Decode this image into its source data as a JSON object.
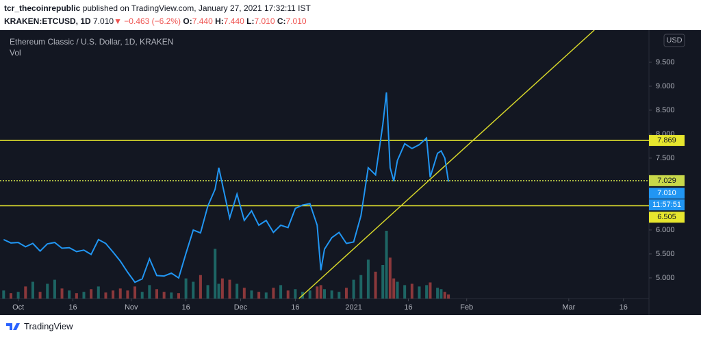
{
  "header": {
    "author": "tcr_thecoinrepublic",
    "published": "published on TradingView.com, January 27, 2021 17:32:11 IST",
    "symbol": "KRAKEN:ETCUSD, 1D",
    "last": "7.010",
    "arrow": "▼",
    "change": "−0.463 (−6.2%)",
    "o_label": "O:",
    "o": "7.440",
    "h_label": "H:",
    "h": "7.440",
    "l_label": "L:",
    "l": "7.010",
    "c_label": "C:",
    "c": "7.010"
  },
  "chart_data": {
    "type": "line",
    "x": [
      "2020-09-27",
      "2020-09-29",
      "2020-10-01",
      "2020-10-03",
      "2020-10-05",
      "2020-10-07",
      "2020-10-09",
      "2020-10-11",
      "2020-10-13",
      "2020-10-15",
      "2020-10-17",
      "2020-10-19",
      "2020-10-21",
      "2020-10-23",
      "2020-10-25",
      "2020-10-27",
      "2020-10-29",
      "2020-10-31",
      "2020-11-02",
      "2020-11-04",
      "2020-11-06",
      "2020-11-08",
      "2020-11-10",
      "2020-11-12",
      "2020-11-14",
      "2020-11-16",
      "2020-11-18",
      "2020-11-20",
      "2020-11-22",
      "2020-11-24",
      "2020-11-25",
      "2020-11-26",
      "2020-11-28",
      "2020-11-30",
      "2020-12-02",
      "2020-12-04",
      "2020-12-06",
      "2020-12-08",
      "2020-12-10",
      "2020-12-12",
      "2020-12-14",
      "2020-12-16",
      "2020-12-18",
      "2020-12-20",
      "2020-12-22",
      "2020-12-23",
      "2020-12-24",
      "2020-12-26",
      "2020-12-28",
      "2020-12-30",
      "2021-01-01",
      "2021-01-03",
      "2021-01-05",
      "2021-01-07",
      "2021-01-09",
      "2021-01-10",
      "2021-01-11",
      "2021-01-12",
      "2021-01-13",
      "2021-01-15",
      "2021-01-17",
      "2021-01-19",
      "2021-01-21",
      "2021-01-22",
      "2021-01-24",
      "2021-01-25",
      "2021-01-26",
      "2021-01-27"
    ],
    "series": [
      {
        "name": "Ethereum Classic / U.S. Dollar, 1D, KRAKEN",
        "color": "#2196f3",
        "values": [
          5.8,
          5.73,
          5.74,
          5.65,
          5.72,
          5.56,
          5.71,
          5.74,
          5.62,
          5.63,
          5.55,
          5.58,
          5.49,
          5.8,
          5.72,
          5.54,
          5.35,
          5.12,
          4.91,
          4.98,
          5.4,
          5.05,
          5.04,
          5.1,
          5.0,
          5.51,
          6.0,
          5.94,
          6.5,
          6.85,
          7.3,
          6.95,
          6.25,
          6.75,
          6.2,
          6.4,
          6.1,
          6.2,
          5.95,
          6.1,
          6.05,
          6.45,
          6.52,
          6.55,
          6.1,
          5.16,
          5.6,
          5.84,
          5.95,
          5.72,
          5.75,
          6.3,
          7.3,
          7.15,
          8.2,
          8.87,
          7.3,
          7.02,
          7.45,
          7.8,
          7.7,
          7.78,
          7.92,
          7.1,
          7.6,
          7.65,
          7.5,
          7.01
        ]
      },
      {
        "name": "Vol",
        "axis": "y2",
        "up_color": "#26a69a",
        "down_color": "#ef5350",
        "values": [
          12,
          8,
          10,
          18,
          25,
          10,
          22,
          28,
          15,
          12,
          8,
          10,
          14,
          18,
          9,
          12,
          15,
          12,
          18,
          10,
          20,
          14,
          10,
          9,
          8,
          30,
          25,
          35,
          20,
          74,
          22,
          30,
          28,
          22,
          16,
          12,
          10,
          9,
          16,
          20,
          12,
          14,
          10,
          12,
          18,
          20,
          14,
          12,
          10,
          16,
          28,
          35,
          58,
          40,
          50,
          101,
          61,
          30,
          25,
          20,
          22,
          18,
          20,
          24,
          16,
          14,
          10,
          6
        ]
      }
    ],
    "xlim": [
      "2020-09-26",
      "2021-03-23"
    ],
    "xticks": [
      {
        "value": "2020-10-01",
        "label": "Oct"
      },
      {
        "value": "2020-10-16",
        "label": "16"
      },
      {
        "value": "2020-11-01",
        "label": "Nov"
      },
      {
        "value": "2020-11-16",
        "label": "16"
      },
      {
        "value": "2020-12-01",
        "label": "Dec"
      },
      {
        "value": "2020-12-16",
        "label": "16"
      },
      {
        "value": "2021-01-01",
        "label": "2021"
      },
      {
        "value": "2021-01-16",
        "label": "16"
      },
      {
        "value": "2021-02-01",
        "label": "Feb"
      },
      {
        "value": "2021-03-01",
        "label": "Mar"
      },
      {
        "value": "2021-03-16",
        "label": "16"
      }
    ],
    "ylim": [
      4.57,
      10.17
    ],
    "yticks": [
      {
        "value": 5,
        "label": "5.000"
      },
      {
        "value": 5.5,
        "label": "5.500"
      },
      {
        "value": 6,
        "label": "6.000"
      },
      {
        "value": 6.5,
        "label": "6.500"
      },
      {
        "value": 7,
        "label": "7.000"
      },
      {
        "value": 7.5,
        "label": "7.500"
      },
      {
        "value": 8,
        "label": "8.000"
      },
      {
        "value": 8.5,
        "label": "8.500"
      },
      {
        "value": 9,
        "label": "9.000"
      },
      {
        "value": 9.5,
        "label": "9.500"
      }
    ],
    "y2lim": [
      0,
      400
    ],
    "currency": "USD",
    "grid": false,
    "hlines": [
      {
        "value": 7.869,
        "color": "#e6e62e"
      },
      {
        "value": 7.029,
        "color": "#c8d84a",
        "dashed": true
      },
      {
        "value": 6.505,
        "color": "#e6e62e"
      }
    ],
    "trendline": {
      "start": [
        "2020-12-17",
        4.57
      ],
      "end": [
        "2021-03-08",
        10.17
      ],
      "color": "#d6d62a"
    },
    "last_price": {
      "value": 7.01,
      "label": "7.010"
    },
    "countdown": "11:57:51"
  },
  "footer": {
    "brand": "TradingView"
  }
}
